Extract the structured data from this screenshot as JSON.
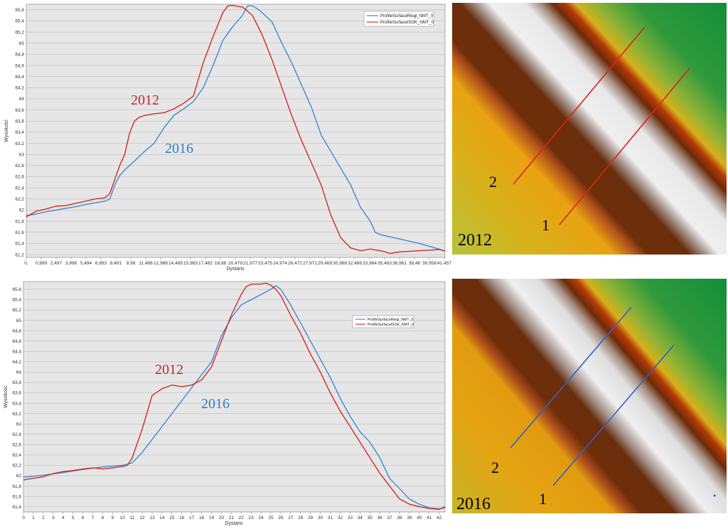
{
  "colors": {
    "blue": "#3c8ad6",
    "red": "#d52a20",
    "plot_bg": "#e6e6e6",
    "grid": "#b5b5b5"
  },
  "chart_data": [
    {
      "type": "line",
      "xlabel": "Dystans",
      "ylabel": "Wysokość",
      "xlim": [
        0,
        42.6
      ],
      "ylim": [
        61.15,
        65.7
      ],
      "yticks": [
        "65,6",
        "65,4",
        "65,2",
        "65",
        "64,8",
        "64,6",
        "64,4",
        "64,2",
        "64",
        "63,8",
        "63,6",
        "63,4",
        "63,2",
        "63",
        "62,8",
        "62,6",
        "62,4",
        "62,2",
        "62",
        "61,8",
        "61,6",
        "61,4",
        "61,2"
      ],
      "xticks": [
        "0,",
        "0,999",
        "2,497",
        "3,996",
        "5,494",
        "6,993",
        "8,491",
        "9,99",
        "11,488",
        "12,986",
        "14,485",
        "15,983",
        "17,482",
        "18,98",
        "20,479",
        "21,977",
        "23,475",
        "24,974",
        "26,472",
        "27,971",
        "29,469",
        "30,968",
        "32,466",
        "33,964",
        "35,463",
        "36,961",
        "38,46",
        "39,958",
        "41,457"
      ],
      "legend": [
        "ProfileSurfaceRiegl_NMT_0",
        "ProfileSurfaceISOK_NMT_0"
      ],
      "annotations": [
        "2012",
        "2016"
      ],
      "series": [
        {
          "name": "ProfileSurfaceRiegl_NMT_0",
          "color": "blue",
          "x": [
            0,
            1,
            2,
            3,
            4,
            5,
            6,
            7,
            8,
            8.5,
            9,
            9.5,
            10,
            11,
            12,
            13,
            14,
            15,
            16,
            17,
            18,
            19,
            20,
            21,
            22,
            22.5,
            23,
            23.5,
            24,
            25,
            26,
            27,
            28,
            29,
            30,
            31,
            32,
            33,
            34,
            35,
            35.5,
            36,
            37,
            38,
            39,
            40,
            41,
            42,
            42.6
          ],
          "y": [
            61.9,
            61.93,
            61.97,
            62,
            62.03,
            62.06,
            62.1,
            62.13,
            62.16,
            62.2,
            62.45,
            62.62,
            62.72,
            62.88,
            63.05,
            63.2,
            63.48,
            63.7,
            63.82,
            63.95,
            64.2,
            64.6,
            65.05,
            65.3,
            65.5,
            65.67,
            65.67,
            65.62,
            65.55,
            65.38,
            65,
            64.65,
            64.25,
            63.85,
            63.35,
            63.05,
            62.75,
            62.45,
            62.05,
            61.8,
            61.6,
            61.56,
            61.52,
            61.48,
            61.44,
            61.4,
            61.35,
            61.3,
            61.26
          ]
        },
        {
          "name": "ProfileSurfaceISOK_NMT_0",
          "color": "red",
          "x": [
            0,
            0.5,
            1,
            2,
            3,
            4,
            5,
            6,
            7,
            8,
            8.5,
            9,
            9.5,
            10,
            10.5,
            11,
            11.5,
            12,
            13,
            14,
            15,
            16,
            17,
            18,
            19,
            20,
            20.5,
            21,
            21.5,
            22,
            23,
            24,
            25,
            26,
            27,
            28,
            29,
            30,
            31,
            32,
            33,
            34,
            35,
            36,
            36.5,
            37,
            38,
            39,
            40,
            41,
            42,
            42.6
          ],
          "y": [
            61.88,
            61.93,
            61.98,
            62.02,
            62.07,
            62.08,
            62.12,
            62.16,
            62.2,
            62.22,
            62.3,
            62.55,
            62.8,
            63,
            63.38,
            63.6,
            63.67,
            63.7,
            63.73,
            63.75,
            63.82,
            63.92,
            64.05,
            64.65,
            65.12,
            65.55,
            65.67,
            65.68,
            65.66,
            65.65,
            65.5,
            65.15,
            64.7,
            64.2,
            63.7,
            63.25,
            62.85,
            62.45,
            61.9,
            61.5,
            61.32,
            61.27,
            61.3,
            61.27,
            61.25,
            61.22,
            61.25,
            61.26,
            61.27,
            61.28,
            61.29,
            61.27
          ]
        }
      ]
    },
    {
      "type": "line",
      "xlabel": "Dystans",
      "ylabel": "Wysokość",
      "xlim": [
        0,
        42.6
      ],
      "ylim": [
        61.3,
        65.75
      ],
      "yticks": [
        "65,6",
        "65,4",
        "65,2",
        "65",
        "64,8",
        "64,6",
        "64,4",
        "64,2",
        "64",
        "63,8",
        "63,6",
        "63,4",
        "63,2",
        "63",
        "62,8",
        "62,6",
        "62,4",
        "62,2",
        "62",
        "61,8",
        "61,6",
        "61,4"
      ],
      "xticks": [
        "0",
        "1",
        "2",
        "3",
        "4",
        "5",
        "6",
        "7",
        "8",
        "9",
        "10",
        "11",
        "12",
        "13",
        "14",
        "15",
        "16",
        "17",
        "18",
        "19",
        "20",
        "21",
        "22",
        "23",
        "24",
        "25",
        "26",
        "27",
        "28",
        "29",
        "30",
        "31",
        "32",
        "33",
        "34",
        "35",
        "36",
        "37",
        "38",
        "39",
        "40",
        "41",
        "42"
      ],
      "legend": [
        "ProfileSurfaceRiegl_NMT_0",
        "ProfileSurfaceISOK_NMT_0"
      ],
      "annotations": [
        "2012",
        "2016"
      ],
      "series": [
        {
          "name": "ProfileSurfaceRiegl_NMT_0",
          "color": "blue",
          "x": [
            0,
            2,
            4,
            6,
            8,
            10,
            11,
            12,
            13,
            14,
            15,
            16,
            17,
            18,
            19,
            20,
            21,
            22,
            23,
            24,
            25,
            25.5,
            26,
            27,
            28,
            29,
            30,
            31,
            32,
            33,
            34,
            35,
            36,
            37,
            38,
            39,
            40,
            41,
            42,
            42.6
          ],
          "y": [
            61.97,
            62.01,
            62.06,
            62.12,
            62.17,
            62.2,
            62.25,
            62.45,
            62.7,
            62.95,
            63.2,
            63.45,
            63.7,
            63.95,
            64.2,
            64.7,
            65.05,
            65.3,
            65.4,
            65.5,
            65.6,
            65.67,
            65.6,
            65.3,
            64.95,
            64.6,
            64.25,
            63.9,
            63.5,
            63.15,
            62.85,
            62.65,
            62.35,
            61.95,
            61.75,
            61.55,
            61.45,
            61.38,
            61.36,
            61.38
          ]
        },
        {
          "name": "ProfileSurfaceISOK_NMT_0",
          "color": "red",
          "x": [
            0,
            1,
            2,
            3,
            4,
            5,
            6,
            7,
            8,
            9,
            10,
            10.5,
            11,
            12,
            13,
            14,
            15,
            16,
            17,
            18,
            19,
            20,
            21,
            22,
            22.5,
            23,
            24,
            24.5,
            25,
            25.5,
            26,
            27,
            28,
            29,
            30,
            31,
            32,
            33,
            34,
            35,
            36,
            37,
            38,
            39,
            40,
            41,
            42,
            42.6
          ],
          "y": [
            61.92,
            61.95,
            61.98,
            62.04,
            62.08,
            62.1,
            62.13,
            62.15,
            62.13,
            62.15,
            62.18,
            62.2,
            62.35,
            62.9,
            63.55,
            63.68,
            63.75,
            63.72,
            63.75,
            63.85,
            64.1,
            64.6,
            65.1,
            65.5,
            65.65,
            65.7,
            65.7,
            65.72,
            65.68,
            65.6,
            65.48,
            65.1,
            64.75,
            64.35,
            64,
            63.6,
            63.25,
            62.95,
            62.65,
            62.35,
            62.05,
            61.8,
            61.55,
            61.45,
            61.4,
            61.37,
            61.35,
            61.4
          ]
        }
      ]
    }
  ],
  "maps": [
    {
      "year": "2012",
      "lines": [
        "1",
        "2"
      ],
      "line_color": "red"
    },
    {
      "year": "2016",
      "lines": [
        "1",
        "2"
      ],
      "line_color": "blue"
    }
  ]
}
